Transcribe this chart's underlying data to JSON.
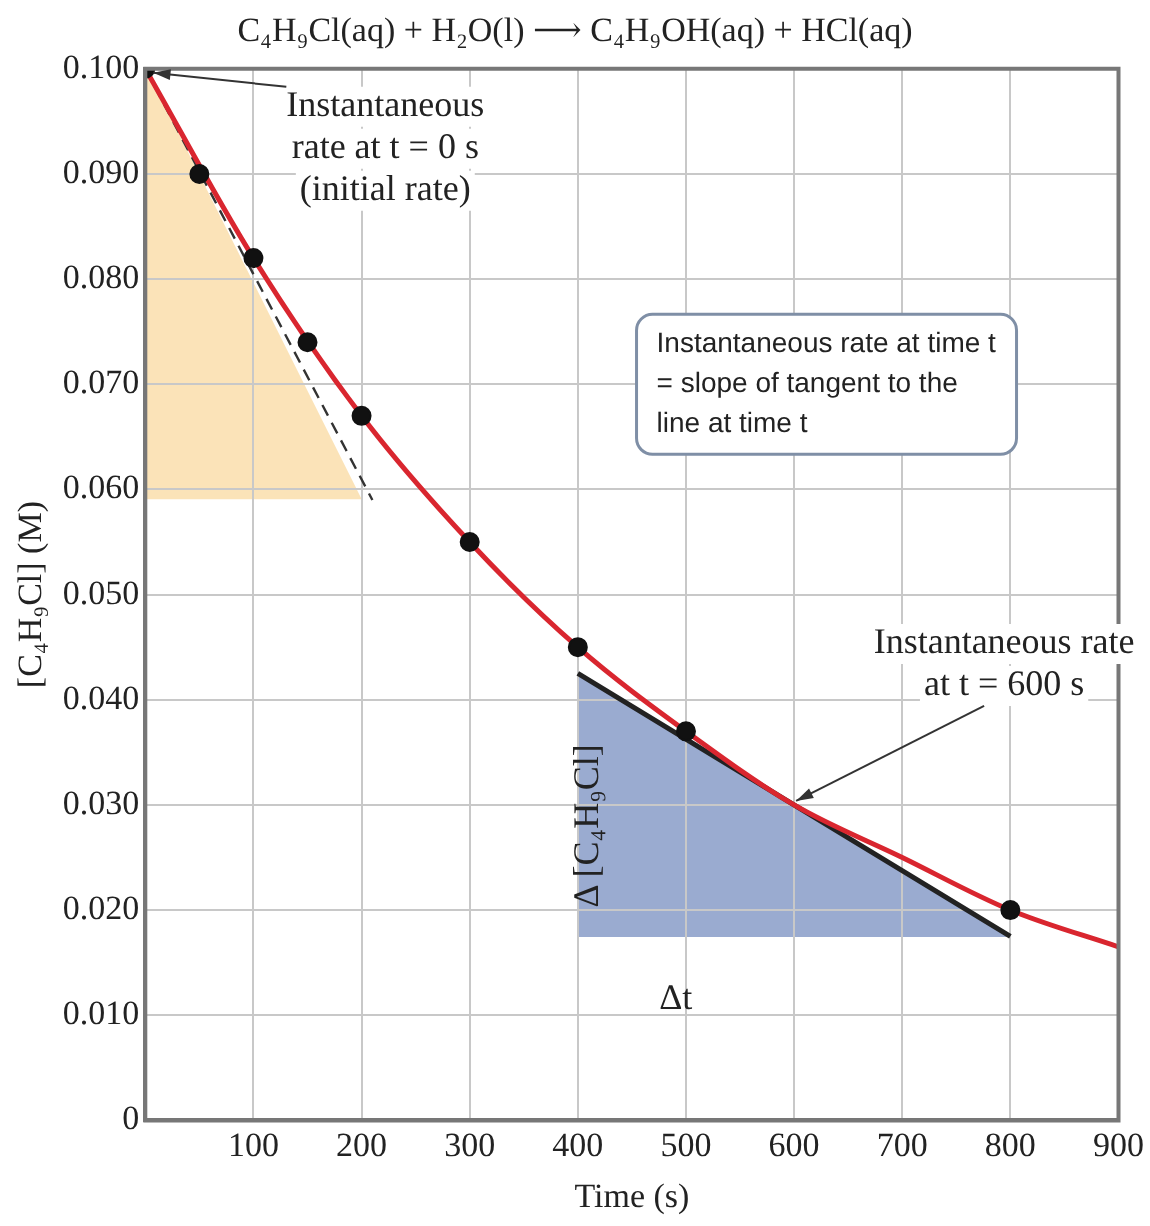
{
  "chart_data": {
    "type": "line",
    "title": "C₄H₉Cl(aq) + H₂O(l) ⟶ C₄H₉OH(aq) + HCl(aq)",
    "xlabel": "Time (s)",
    "ylabel": "[C₄H₉Cl] (M)",
    "xlim": [
      0,
      900
    ],
    "xticks": [
      100,
      200,
      300,
      400,
      500,
      600,
      700,
      800,
      900
    ],
    "ylim": [
      0,
      0.1
    ],
    "yticks": [
      0,
      {
        "value": 0.01,
        "label": "0.010"
      },
      {
        "value": 0.02,
        "label": "0.020"
      },
      {
        "value": 0.03,
        "label": "0.030"
      },
      {
        "value": 0.04,
        "label": "0.040"
      },
      {
        "value": 0.05,
        "label": "0.050"
      },
      {
        "value": 0.06,
        "label": "0.060"
      },
      {
        "value": 0.07,
        "label": "0.070"
      },
      {
        "value": 0.08,
        "label": "0.080"
      },
      {
        "value": 0.09,
        "label": "0.090"
      },
      {
        "value": 0.1,
        "label": "0.100"
      }
    ],
    "grid": true,
    "legend": false,
    "series": [
      {
        "color": "#333333",
        "line_style": "dashed",
        "marker": "none",
        "x": [
          0,
          210
        ],
        "values": [
          0.1,
          0.059
        ]
      },
      {
        "color": "#222222",
        "marker": "none",
        "x": [
          400,
          800
        ],
        "values": [
          0.0425,
          0.0175
        ]
      },
      {
        "color": "#d9262f",
        "marker": "none",
        "x": [
          0,
          100,
          200,
          300,
          400,
          500,
          600,
          700,
          800,
          900
        ],
        "values": [
          0.1,
          0.082,
          0.067,
          0.055,
          0.045,
          0.037,
          0.03,
          0.025,
          0.02,
          0.0165
        ]
      },
      {
        "type": "scatter",
        "color": "#111111",
        "marker": "circle",
        "x": [
          0,
          50,
          100,
          150,
          200,
          300,
          400,
          500,
          800
        ],
        "values": [
          0.1,
          0.09,
          0.082,
          0.074,
          0.067,
          0.055,
          0.045,
          0.037,
          0.02
        ]
      }
    ],
    "annotations": [
      {
        "text": "Instantaneous rate at t = 0 s (initial rate)",
        "x": 0,
        "y": 0.1
      },
      {
        "text": "Instantaneous rate at t = 600 s",
        "x": 600,
        "y": 0.03
      },
      "Instantaneous rate at time t = slope of tangent to the line at time t",
      "Δ [C₄H₉Cl]",
      "Δt"
    ]
  }
}
